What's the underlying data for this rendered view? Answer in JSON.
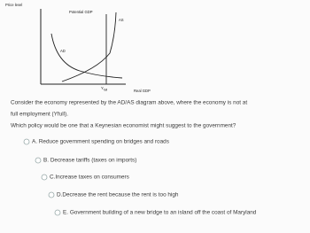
{
  "diagram": {
    "y_axis_label": "Price level",
    "x_axis_label": "Real GDP",
    "potential_gdp_label": "Potential GDP",
    "as_label": "AS",
    "ad_label": "AD",
    "y_full": {
      "main": "Y",
      "sub": "full"
    }
  },
  "question": {
    "lines": [
      "Consider the economy represented by the AD/AS diagram above, where the economy is not at",
      "full employment (Yfull).",
      "Which policy would be one that a Keynesian economist might suggest to the government?"
    ]
  },
  "options": [
    "A. Reduce government spending on bridges and roads",
    "B. Decrease tariffs (taxes on imports)",
    "C.Increase taxes on consumers",
    "D.Decrease the rent because the rent is too high",
    "E. Government building of a new bridge to an island off the coast of Maryland"
  ]
}
